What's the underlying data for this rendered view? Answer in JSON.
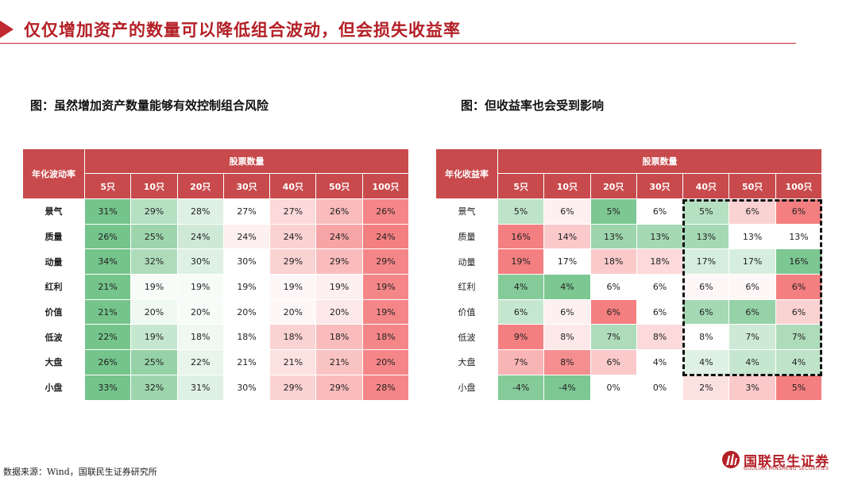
{
  "header": {
    "title": "仅仅增加资产的数量可以降低组合波动，但会损失收益率",
    "accent_color": "#c0292f"
  },
  "left_figure": {
    "caption": "图：虽然增加资产数量能够有效控制组合风险",
    "corner_label": "年化波动率",
    "group_label": "股票数量",
    "columns": [
      "5只",
      "10只",
      "20只",
      "30只",
      "40只",
      "50只",
      "100只"
    ],
    "rows": [
      {
        "label": "景气",
        "values": [
          "31%",
          "29%",
          "28%",
          "27%",
          "27%",
          "26%",
          "26%"
        ],
        "scale": [
          -0.85,
          -0.45,
          -0.2,
          0,
          0.25,
          0.45,
          0.8
        ]
      },
      {
        "label": "质量",
        "values": [
          "26%",
          "25%",
          "24%",
          "24%",
          "24%",
          "24%",
          "24%"
        ],
        "scale": [
          -0.85,
          -0.6,
          -0.3,
          0.1,
          0.3,
          0.6,
          0.85
        ]
      },
      {
        "label": "动量",
        "values": [
          "34%",
          "32%",
          "30%",
          "30%",
          "29%",
          "29%",
          "29%"
        ],
        "scale": [
          -0.85,
          -0.5,
          -0.2,
          0,
          0.3,
          0.45,
          0.8
        ]
      },
      {
        "label": "红利",
        "values": [
          "21%",
          "19%",
          "19%",
          "19%",
          "19%",
          "19%",
          "19%"
        ],
        "scale": [
          -0.85,
          -0.05,
          -0.05,
          0,
          0.05,
          0.1,
          0.8
        ]
      },
      {
        "label": "价值",
        "values": [
          "21%",
          "20%",
          "20%",
          "20%",
          "20%",
          "20%",
          "19%"
        ],
        "scale": [
          -0.85,
          -0.1,
          -0.05,
          0,
          0.05,
          0.15,
          0.8
        ]
      },
      {
        "label": "低波",
        "values": [
          "22%",
          "19%",
          "18%",
          "18%",
          "18%",
          "18%",
          "18%"
        ],
        "scale": [
          -0.85,
          -0.35,
          -0.1,
          0,
          0.3,
          0.45,
          0.8
        ]
      },
      {
        "label": "大盘",
        "values": [
          "26%",
          "25%",
          "22%",
          "21%",
          "21%",
          "21%",
          "20%"
        ],
        "scale": [
          -0.85,
          -0.65,
          -0.15,
          0,
          0.2,
          0.4,
          0.8
        ]
      },
      {
        "label": "小盘",
        "values": [
          "33%",
          "32%",
          "31%",
          "30%",
          "29%",
          "29%",
          "28%"
        ],
        "scale": [
          -0.85,
          -0.6,
          -0.2,
          0,
          0.3,
          0.45,
          0.8
        ]
      }
    ]
  },
  "right_figure": {
    "caption": "图：但收益率也会受到影响",
    "corner_label": "年化收益率",
    "group_label": "股票数量",
    "columns": [
      "5只",
      "10只",
      "20只",
      "30只",
      "40只",
      "50只",
      "100只"
    ],
    "rows": [
      {
        "label": "景气",
        "values": [
          "5%",
          "6%",
          "5%",
          "6%",
          "5%",
          "6%",
          "6%"
        ],
        "scale": [
          -0.4,
          0.1,
          -0.8,
          0,
          -0.45,
          0.3,
          0.85
        ]
      },
      {
        "label": "质量",
        "values": [
          "16%",
          "14%",
          "13%",
          "13%",
          "13%",
          "13%",
          "13%"
        ],
        "scale": [
          0.85,
          0.35,
          -0.6,
          -0.55,
          -0.55,
          0,
          0
        ]
      },
      {
        "label": "动量",
        "values": [
          "19%",
          "17%",
          "18%",
          "18%",
          "17%",
          "17%",
          "16%"
        ],
        "scale": [
          0.85,
          0,
          0.35,
          0.25,
          -0.25,
          -0.25,
          -0.8
        ]
      },
      {
        "label": "红利",
        "values": [
          "4%",
          "4%",
          "6%",
          "6%",
          "6%",
          "6%",
          "6%"
        ],
        "scale": [
          -0.75,
          -0.8,
          0,
          0,
          0.05,
          0.05,
          0.85
        ]
      },
      {
        "label": "价值",
        "values": [
          "6%",
          "6%",
          "6%",
          "6%",
          "6%",
          "6%",
          "6%"
        ],
        "scale": [
          -0.35,
          0.1,
          0.85,
          0,
          -0.55,
          -0.65,
          0.3
        ]
      },
      {
        "label": "低波",
        "values": [
          "9%",
          "8%",
          "7%",
          "8%",
          "8%",
          "7%",
          "7%"
        ],
        "scale": [
          0.85,
          0.15,
          -0.5,
          0.25,
          0,
          -0.3,
          -0.5
        ]
      },
      {
        "label": "大盘",
        "values": [
          "7%",
          "8%",
          "6%",
          "4%",
          "4%",
          "4%",
          "4%"
        ],
        "scale": [
          0.5,
          0.75,
          0.35,
          0,
          -0.2,
          -0.35,
          -0.4
        ]
      },
      {
        "label": "小盘",
        "values": [
          "-4%",
          "-4%",
          "0%",
          "0%",
          "2%",
          "3%",
          "5%"
        ],
        "scale": [
          -0.75,
          -0.8,
          0,
          0,
          0.2,
          0.35,
          0.85
        ]
      }
    ],
    "highlight": "dashed-box-40-to-100"
  },
  "colors": {
    "header_red": "#c84a4c",
    "high_red": "#f2686a",
    "low_green": "#5cb977",
    "neutral": "#ffffff"
  },
  "footer": {
    "source": "数据来源：Wind，国联民生证券研究所",
    "logo_text": "国联民生证券",
    "logo_sub": "GUOLIAN MINSHENG SECURITIES"
  }
}
